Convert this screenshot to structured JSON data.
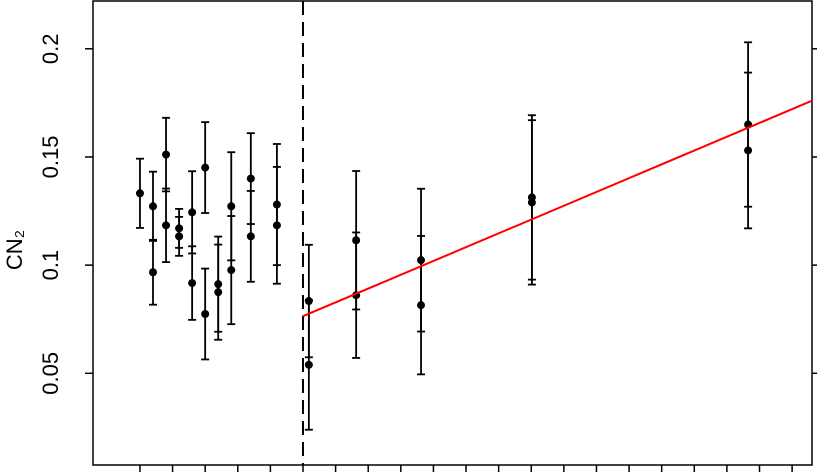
{
  "chart_data": {
    "type": "scatter",
    "ylabel": "CN₂",
    "xlim": [
      -1.44,
      20.61
    ],
    "ylim": [
      0.0076,
      0.2221
    ],
    "xticks": [
      0,
      1,
      2,
      3,
      4,
      5,
      6,
      7,
      8,
      9,
      10,
      11,
      12,
      13,
      14,
      15,
      16,
      17,
      18,
      19,
      20
    ],
    "yticks": [
      0.05,
      0.1,
      0.15,
      0.2
    ],
    "vline": 5,
    "series": [
      {
        "color": "#000000",
        "x": [
          0,
          0.4,
          0.4,
          0.8,
          0.8,
          1.2,
          1.2,
          1.6,
          1.6,
          2.0,
          2.0,
          2.4,
          2.4,
          2.8,
          2.8,
          3.4,
          3.4,
          4.2,
          4.2,
          5.18,
          5.18,
          6.63,
          6.63,
          8.62,
          8.62,
          12.02,
          12.02,
          18.65,
          18.65
        ],
        "values": [
          0.1332,
          0.1272,
          0.0967,
          0.1511,
          0.1184,
          0.117,
          0.1133,
          0.1244,
          0.0917,
          0.1451,
          0.0774,
          0.0912,
          0.0875,
          0.1272,
          0.0977,
          0.14,
          0.1133,
          0.128,
          0.1184,
          0.0834,
          0.0539,
          0.1115,
          0.0861,
          0.1023,
          0.0815,
          0.1313,
          0.129,
          0.165,
          0.153
        ],
        "yerr": [
          0.016,
          0.016,
          0.015,
          0.017,
          0.017,
          0.009,
          0.009,
          0.019,
          0.017,
          0.021,
          0.021,
          0.022,
          0.022,
          0.025,
          0.025,
          0.021,
          0.021,
          0.028,
          0.027,
          0.026,
          0.03,
          0.032,
          0.029,
          0.033,
          0.032,
          0.038,
          0.038,
          0.038,
          0.036
        ]
      }
    ],
    "fit": {
      "color": "#ff0000",
      "x": [
        5,
        20.61
      ],
      "values": [
        0.0764,
        0.176
      ]
    }
  }
}
